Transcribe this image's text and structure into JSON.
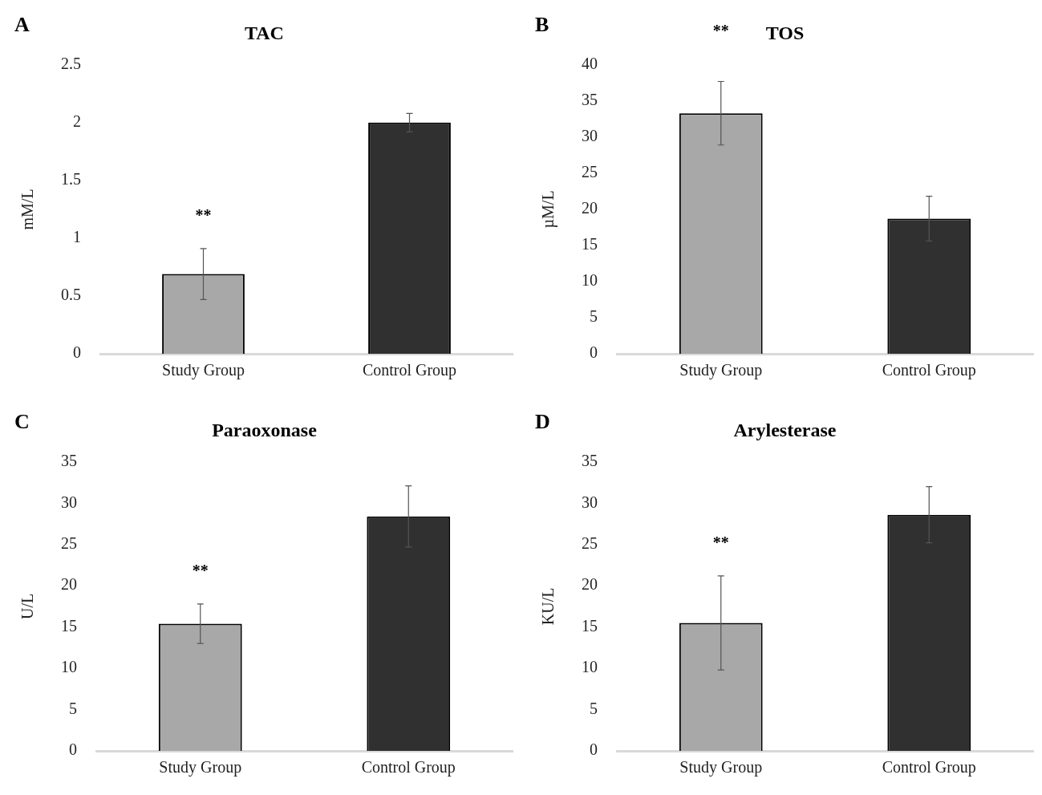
{
  "chart_data": [
    {
      "type": "bar",
      "title": "TAC",
      "ylabel": "mM/L",
      "categories": [
        "Study Group",
        "Control Group"
      ],
      "values": [
        0.69,
        2.0
      ],
      "errors": [
        0.22,
        0.08
      ],
      "colors": [
        "#a8a8a8",
        "#303030"
      ],
      "ylim": [
        0,
        2.5
      ],
      "yticks": [
        0,
        0.5,
        1,
        1.5,
        2,
        2.5
      ],
      "annotations": [
        "A",
        "**"
      ]
    },
    {
      "type": "bar",
      "title": "TOS",
      "ylabel": "µM/L",
      "categories": [
        "Study Group",
        "Control Group"
      ],
      "values": [
        33.3,
        18.7
      ],
      "errors": [
        4.4,
        3.1
      ],
      "colors": [
        "#a8a8a8",
        "#303030"
      ],
      "ylim": [
        0,
        40
      ],
      "yticks": [
        0,
        5,
        10,
        15,
        20,
        25,
        30,
        35,
        40
      ],
      "annotations": [
        "B",
        "**"
      ]
    },
    {
      "type": "bar",
      "title": "Paraoxonase",
      "ylabel": "U/L",
      "categories": [
        "Study Group",
        "Control Group"
      ],
      "values": [
        15.4,
        28.4
      ],
      "errors": [
        2.4,
        3.7
      ],
      "colors": [
        "#a8a8a8",
        "#303030"
      ],
      "ylim": [
        0,
        35
      ],
      "yticks": [
        0,
        5,
        10,
        15,
        20,
        25,
        30,
        35
      ],
      "annotations": [
        "C",
        "**"
      ]
    },
    {
      "type": "bar",
      "title": "Arylesterase",
      "ylabel": "KU/L",
      "categories": [
        "Study Group",
        "Control Group"
      ],
      "values": [
        15.5,
        28.6
      ],
      "errors": [
        5.7,
        3.4
      ],
      "colors": [
        "#a8a8a8",
        "#303030"
      ],
      "ylim": [
        0,
        35
      ],
      "yticks": [
        0,
        5,
        10,
        15,
        20,
        25,
        30,
        35
      ],
      "annotations": [
        "D",
        "**"
      ]
    }
  ]
}
